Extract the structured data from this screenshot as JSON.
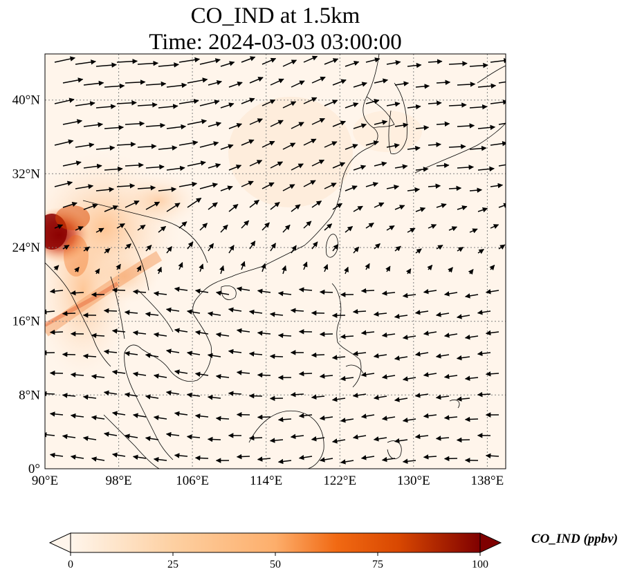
{
  "title": {
    "line1": "CO_IND at 1.5km",
    "line2": "Time: 2024-03-03 03:00:00"
  },
  "map": {
    "lon_range": [
      90,
      140
    ],
    "lat_range": [
      0,
      45
    ],
    "lon_ticks": [
      "90°E",
      "98°E",
      "106°E",
      "114°E",
      "122°E",
      "130°E",
      "138°E"
    ],
    "lat_ticks": [
      "0°",
      "8°N",
      "16°N",
      "24°N",
      "32°N",
      "40°N"
    ],
    "gridlines": true,
    "coastlines": true,
    "wind_vectors": true
  },
  "colorbar": {
    "label": "CO_IND (ppbv)",
    "ticks": [
      "0",
      "25",
      "50",
      "75",
      "100"
    ],
    "range": [
      0,
      100
    ],
    "colormap": [
      "#fff5eb",
      "#fdd0a2",
      "#fd8d3c",
      "#d94801",
      "#7f2704"
    ],
    "extend": "both"
  },
  "colors": {
    "background": "#fff5eb",
    "coastline": "#000000",
    "grid": "#808080",
    "high": "#7f0000"
  }
}
